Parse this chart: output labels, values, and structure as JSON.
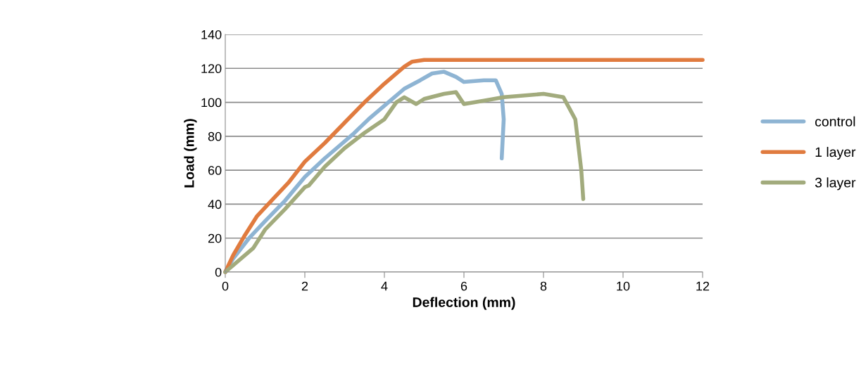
{
  "chart_data": {
    "type": "line",
    "xlabel": "Deflection (mm)",
    "ylabel": "Load (mm)",
    "xlim": [
      0,
      12
    ],
    "xticks": [
      0,
      2,
      4,
      6,
      8,
      10,
      12
    ],
    "ylim": [
      0,
      140
    ],
    "yticks": [
      0,
      20,
      40,
      60,
      80,
      100,
      120,
      140
    ],
    "grid": "y",
    "legend": "right",
    "marker": "none",
    "line_style": "solid",
    "series": [
      {
        "name": "control",
        "color": "#8eb4d3",
        "x": [
          0,
          0.2,
          0.6,
          1,
          1.5,
          2,
          2.5,
          2.8,
          3.2,
          3.6,
          4,
          4.5,
          4.9,
          5.2,
          5.5,
          5.8,
          6,
          6.5,
          6.8,
          6.95,
          7.0,
          6.95
        ],
        "values": [
          0,
          8,
          20,
          30,
          42,
          56,
          67,
          73,
          81,
          90,
          98,
          108,
          113,
          117,
          118,
          115,
          112,
          113,
          113,
          105,
          90,
          67
        ]
      },
      {
        "name": "1 layer",
        "color": "#e07b3f",
        "x": [
          0,
          0.2,
          0.5,
          0.8,
          1.2,
          1.6,
          2,
          2.5,
          3,
          3.5,
          4,
          4.5,
          4.7,
          5,
          12
        ],
        "values": [
          0,
          10,
          22,
          33,
          43,
          53,
          65,
          76,
          88,
          100,
          111,
          121,
          124,
          125,
          125
        ]
      },
      {
        "name": "3 layer",
        "color": "#a2ab7d",
        "x": [
          0,
          0.4,
          0.7,
          1,
          1.5,
          2,
          2.1,
          2.5,
          3,
          3.5,
          4,
          4.3,
          4.5,
          4.8,
          5,
          5.5,
          5.8,
          6,
          6.5,
          7,
          8,
          8.5,
          8.8,
          8.95,
          9.0
        ],
        "values": [
          0,
          8,
          14,
          25,
          37,
          50,
          51,
          62,
          73,
          82,
          90,
          100,
          103,
          99,
          102,
          105,
          106,
          99,
          101,
          103,
          105,
          103,
          90,
          60,
          43
        ]
      }
    ]
  }
}
